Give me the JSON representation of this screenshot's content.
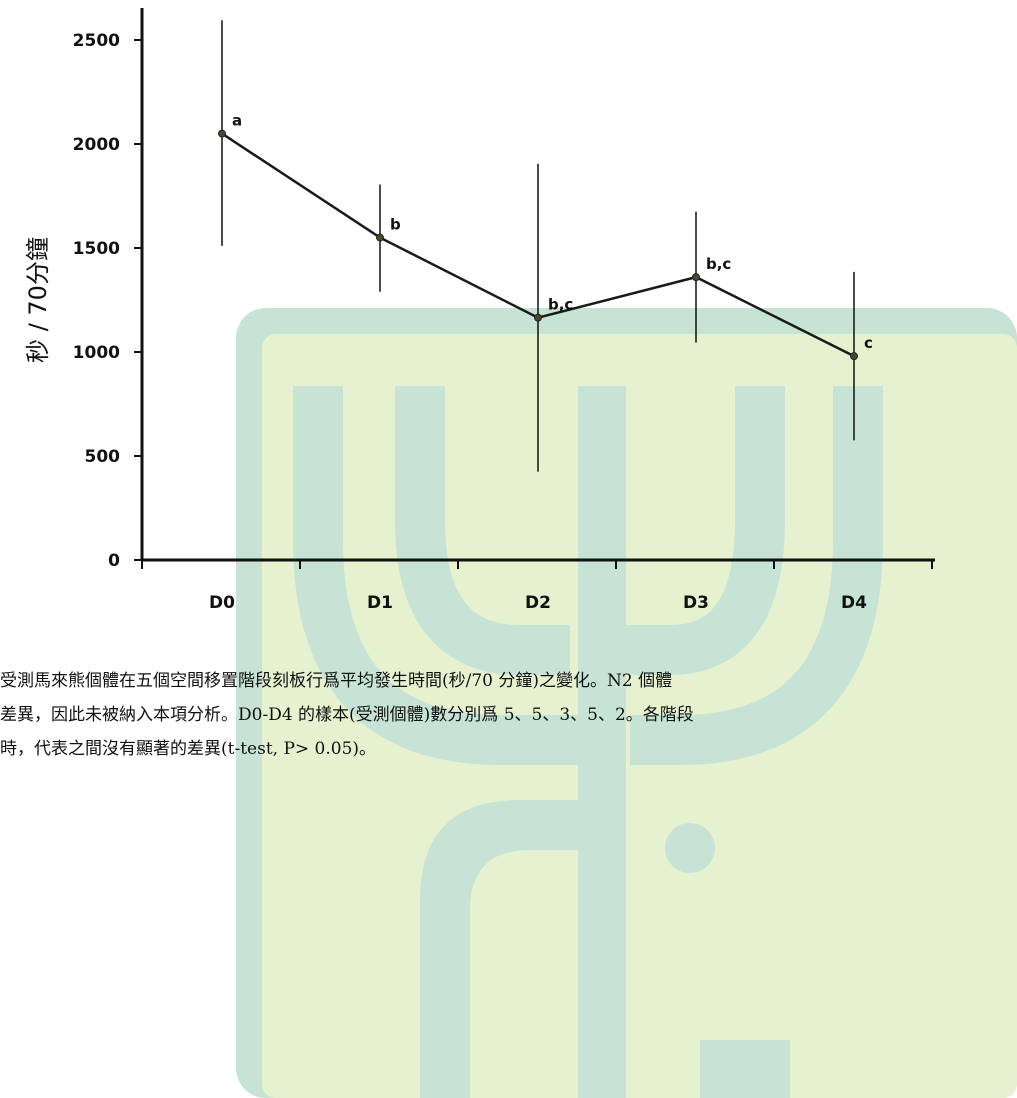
{
  "chart_data": {
    "type": "line",
    "title": "",
    "xlabel": "",
    "ylabel": "秒 / 70分鐘",
    "categories": [
      "D0",
      "D1",
      "D2",
      "D3",
      "D4"
    ],
    "series": [
      {
        "values": [
          2050,
          1550,
          1165,
          1360,
          980
        ],
        "error_low": [
          1510,
          1290,
          425,
          1045,
          575
        ],
        "error_high": [
          2595,
          1805,
          1905,
          1675,
          1385
        ],
        "point_labels": [
          "a",
          "b",
          "b,c",
          "b,c",
          "c"
        ],
        "color": "#1a1a1a"
      }
    ],
    "ylim": [
      0,
      2500
    ],
    "yticks": [
      0,
      500,
      1000,
      1500,
      2000,
      2500
    ],
    "grid": false
  },
  "caption": {
    "line1": "受測馬來熊個體在五個空間移置階段刻板行爲平均發生時間(秒/70 分鐘)之變化。N2 個體",
    "line2": "差異，因此未被納入本項分析。D0-D4 的樣本(受測個體)數分別爲 5、5、3、5、2。各階段",
    "line3": "時，代表之間沒有顯著的差異(t-test, P> 0.05)。"
  },
  "watermark": {
    "fill_color": "#e6f2cf",
    "accent_color": "#c6e3d6"
  }
}
